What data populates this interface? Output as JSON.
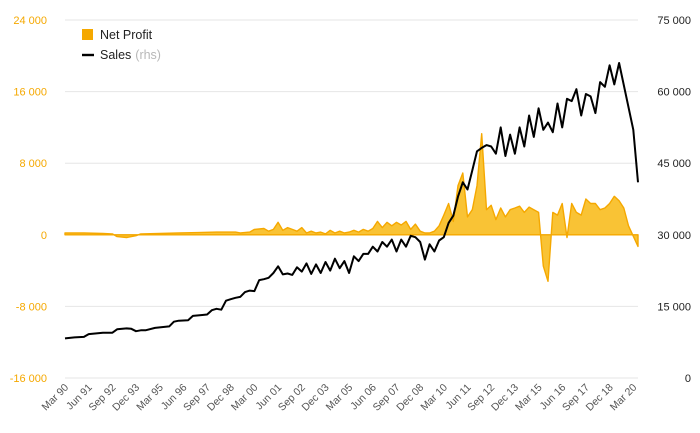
{
  "chart_data": {
    "type": "area+line",
    "title": "",
    "xlabel": "",
    "ylabel": "",
    "y_left": {
      "min": -16000,
      "max": 24000,
      "ticks": [
        "24 000",
        "16 000",
        "8 000",
        "0",
        "-8 000",
        "-16 000"
      ]
    },
    "y_right": {
      "min": 0,
      "max": 75000,
      "ticks": [
        "75 000",
        "60 000",
        "45 000",
        "30 000",
        "15 000",
        "0"
      ]
    },
    "x_ticks": [
      "Mar 90",
      "Jun 91",
      "Sep 92",
      "Dec 93",
      "Mar 95",
      "Jun 96",
      "Sep 97",
      "Dec 98",
      "Mar 00",
      "Jun 01",
      "Sep 02",
      "Dec 03",
      "Mar 05",
      "Jun 06",
      "Sep 07",
      "Dec 08",
      "Mar 10",
      "Jun 11",
      "Sep 12",
      "Dec 13",
      "Mar 15",
      "Jun 16",
      "Sep 17",
      "Dec 18",
      "Mar 20"
    ],
    "x_range": [
      "Mar 90",
      "Jun 20"
    ],
    "grid": "horizontal",
    "legend": {
      "placement": "top-left",
      "items": [
        {
          "label": "Net Profit",
          "note": "",
          "color": "#f5a800",
          "marker": "square"
        },
        {
          "label": "Sales",
          "note": "(rhs)",
          "color": "#000000",
          "marker": "line"
        }
      ]
    },
    "series": [
      {
        "name": "Net Profit",
        "type": "area",
        "axis": "left",
        "color": "#f5a800",
        "points": [
          [
            "Mar 90",
            200
          ],
          [
            "Mar 91",
            200
          ],
          [
            "Mar 92",
            150
          ],
          [
            "Sep 92",
            100
          ],
          [
            "Dec 92",
            -200
          ],
          [
            "Jun 93",
            -300
          ],
          [
            "Dec 93",
            -100
          ],
          [
            "Mar 94",
            100
          ],
          [
            "Mar 95",
            150
          ],
          [
            "Mar 96",
            200
          ],
          [
            "Mar 97",
            250
          ],
          [
            "Mar 98",
            300
          ],
          [
            "Mar 99",
            300
          ],
          [
            "Jun 99",
            200
          ],
          [
            "Dec 99",
            300
          ],
          [
            "Mar 00",
            600
          ],
          [
            "Sep 00",
            700
          ],
          [
            "Dec 00",
            400
          ],
          [
            "Mar 01",
            600
          ],
          [
            "Jun 01",
            1400
          ],
          [
            "Sep 01",
            500
          ],
          [
            "Dec 01",
            800
          ],
          [
            "Mar 02",
            600
          ],
          [
            "Jun 02",
            400
          ],
          [
            "Sep 02",
            800
          ],
          [
            "Dec 02",
            200
          ],
          [
            "Mar 03",
            400
          ],
          [
            "Jun 03",
            200
          ],
          [
            "Sep 03",
            300
          ],
          [
            "Dec 03",
            100
          ],
          [
            "Mar 04",
            500
          ],
          [
            "Jun 04",
            200
          ],
          [
            "Sep 04",
            400
          ],
          [
            "Dec 04",
            200
          ],
          [
            "Mar 05",
            300
          ],
          [
            "Jun 05",
            500
          ],
          [
            "Sep 05",
            300
          ],
          [
            "Dec 05",
            600
          ],
          [
            "Mar 06",
            400
          ],
          [
            "Jun 06",
            700
          ],
          [
            "Sep 06",
            1500
          ],
          [
            "Dec 06",
            800
          ],
          [
            "Mar 07",
            1400
          ],
          [
            "Jun 07",
            1000
          ],
          [
            "Sep 07",
            1400
          ],
          [
            "Dec 07",
            1100
          ],
          [
            "Mar 08",
            1500
          ],
          [
            "Jun 08",
            600
          ],
          [
            "Sep 08",
            1200
          ],
          [
            "Dec 08",
            400
          ],
          [
            "Mar 09",
            200
          ],
          [
            "Jun 09",
            200
          ],
          [
            "Sep 09",
            400
          ],
          [
            "Dec 09",
            1000
          ],
          [
            "Mar 10",
            2200
          ],
          [
            "Jun 10",
            3500
          ],
          [
            "Sep 10",
            1500
          ],
          [
            "Dec 10",
            5500
          ],
          [
            "Mar 11",
            6900
          ],
          [
            "Jun 11",
            2000
          ],
          [
            "Sep 11",
            2800
          ],
          [
            "Dec 11",
            5500
          ],
          [
            "Mar 12",
            11300
          ],
          [
            "Jun 12",
            2800
          ],
          [
            "Sep 12",
            3300
          ],
          [
            "Dec 12",
            1700
          ],
          [
            "Mar 13",
            3000
          ],
          [
            "Jun 13",
            2000
          ],
          [
            "Sep 13",
            2800
          ],
          [
            "Dec 13",
            3000
          ],
          [
            "Mar 14",
            3200
          ],
          [
            "Jun 14",
            2500
          ],
          [
            "Sep 14",
            3100
          ],
          [
            "Dec 14",
            2800
          ],
          [
            "Mar 15",
            2500
          ],
          [
            "Jun 15",
            -3500
          ],
          [
            "Sep 15",
            -5200
          ],
          [
            "Dec 15",
            2500
          ],
          [
            "Mar 16",
            2200
          ],
          [
            "Jun 16",
            3500
          ],
          [
            "Sep 16",
            -300
          ],
          [
            "Dec 16",
            3500
          ],
          [
            "Mar 17",
            2500
          ],
          [
            "Jun 17",
            2200
          ],
          [
            "Sep 17",
            4000
          ],
          [
            "Dec 17",
            3500
          ],
          [
            "Mar 18",
            3500
          ],
          [
            "Jun 18",
            2800
          ],
          [
            "Sep 18",
            3000
          ],
          [
            "Dec 18",
            3500
          ],
          [
            "Mar 19",
            4300
          ],
          [
            "Jun 19",
            3800
          ],
          [
            "Sep 19",
            3000
          ],
          [
            "Dec 19",
            1000
          ],
          [
            "Jun 20",
            -1300
          ]
        ]
      },
      {
        "name": "Sales",
        "type": "line",
        "axis": "right",
        "color": "#000000",
        "points": [
          [
            "Mar 90",
            8300
          ],
          [
            "Sep 90",
            8500
          ],
          [
            "Mar 91",
            8600
          ],
          [
            "Jun 91",
            9200
          ],
          [
            "Mar 92",
            9500
          ],
          [
            "Sep 92",
            9500
          ],
          [
            "Dec 92",
            10200
          ],
          [
            "Jun 93",
            10400
          ],
          [
            "Sep 93",
            10300
          ],
          [
            "Dec 93",
            9800
          ],
          [
            "Mar 94",
            10000
          ],
          [
            "Jun 94",
            10000
          ],
          [
            "Dec 94",
            10500
          ],
          [
            "Mar 95",
            10600
          ],
          [
            "Sep 95",
            10800
          ],
          [
            "Dec 95",
            11800
          ],
          [
            "Mar 96",
            12000
          ],
          [
            "Sep 96",
            12100
          ],
          [
            "Dec 96",
            13000
          ],
          [
            "Jun 97",
            13200
          ],
          [
            "Sep 97",
            13300
          ],
          [
            "Dec 97",
            14200
          ],
          [
            "Mar 98",
            14500
          ],
          [
            "Jun 98",
            14300
          ],
          [
            "Sep 98",
            16200
          ],
          [
            "Dec 98",
            16500
          ],
          [
            "Mar 99",
            16800
          ],
          [
            "Jun 99",
            17000
          ],
          [
            "Sep 99",
            18000
          ],
          [
            "Dec 99",
            18300
          ],
          [
            "Mar 00",
            18200
          ],
          [
            "Jun 00",
            20500
          ],
          [
            "Sep 00",
            20700
          ],
          [
            "Dec 00",
            21000
          ],
          [
            "Mar 01",
            22000
          ],
          [
            "Jun 01",
            23400
          ],
          [
            "Sep 01",
            21700
          ],
          [
            "Dec 01",
            21900
          ],
          [
            "Mar 02",
            21600
          ],
          [
            "Jun 02",
            23200
          ],
          [
            "Sep 02",
            22300
          ],
          [
            "Dec 02",
            24000
          ],
          [
            "Mar 03",
            21800
          ],
          [
            "Jun 03",
            23800
          ],
          [
            "Sep 03",
            22000
          ],
          [
            "Dec 03",
            24300
          ],
          [
            "Mar 04",
            22500
          ],
          [
            "Jun 04",
            25000
          ],
          [
            "Sep 04",
            23000
          ],
          [
            "Dec 04",
            24500
          ],
          [
            "Mar 05",
            22000
          ],
          [
            "Jun 05",
            25500
          ],
          [
            "Sep 05",
            24500
          ],
          [
            "Dec 05",
            26000
          ],
          [
            "Mar 06",
            26000
          ],
          [
            "Jun 06",
            27500
          ],
          [
            "Sep 06",
            26500
          ],
          [
            "Dec 06",
            28500
          ],
          [
            "Mar 07",
            27500
          ],
          [
            "Jun 07",
            29000
          ],
          [
            "Sep 07",
            26500
          ],
          [
            "Dec 07",
            29000
          ],
          [
            "Mar 08",
            27500
          ],
          [
            "Jun 08",
            29800
          ],
          [
            "Sep 08",
            29500
          ],
          [
            "Dec 08",
            28500
          ],
          [
            "Mar 09",
            24800
          ],
          [
            "Jun 09",
            28000
          ],
          [
            "Sep 09",
            26500
          ],
          [
            "Dec 09",
            28800
          ],
          [
            "Mar 10",
            29500
          ],
          [
            "Jun 10",
            32500
          ],
          [
            "Sep 10",
            34000
          ],
          [
            "Dec 10",
            38000
          ],
          [
            "Mar 11",
            41000
          ],
          [
            "Jun 11",
            39500
          ],
          [
            "Sep 11",
            43500
          ],
          [
            "Dec 11",
            47500
          ],
          [
            "Mar 12",
            48200
          ],
          [
            "Jun 12",
            48800
          ],
          [
            "Sep 12",
            48500
          ],
          [
            "Dec 12",
            47000
          ],
          [
            "Mar 13",
            52500
          ],
          [
            "Jun 13",
            46500
          ],
          [
            "Sep 13",
            51000
          ],
          [
            "Dec 13",
            47000
          ],
          [
            "Mar 14",
            52500
          ],
          [
            "Jun 14",
            48500
          ],
          [
            "Sep 14",
            55000
          ],
          [
            "Dec 14",
            50500
          ],
          [
            "Mar 15",
            56500
          ],
          [
            "Jun 15",
            52000
          ],
          [
            "Sep 15",
            53500
          ],
          [
            "Dec 15",
            51500
          ],
          [
            "Mar 16",
            57500
          ],
          [
            "Jun 16",
            52500
          ],
          [
            "Sep 16",
            58500
          ],
          [
            "Dec 16",
            58000
          ],
          [
            "Mar 17",
            60500
          ],
          [
            "Jun 17",
            55000
          ],
          [
            "Sep 17",
            59500
          ],
          [
            "Dec 17",
            59000
          ],
          [
            "Mar 18",
            55500
          ],
          [
            "Jun 18",
            62000
          ],
          [
            "Sep 18",
            61000
          ],
          [
            "Dec 18",
            65500
          ],
          [
            "Mar 19",
            61500
          ],
          [
            "Jun 19",
            66000
          ],
          [
            "Mar 20",
            52000
          ],
          [
            "Jun 20",
            41000
          ]
        ]
      }
    ]
  }
}
